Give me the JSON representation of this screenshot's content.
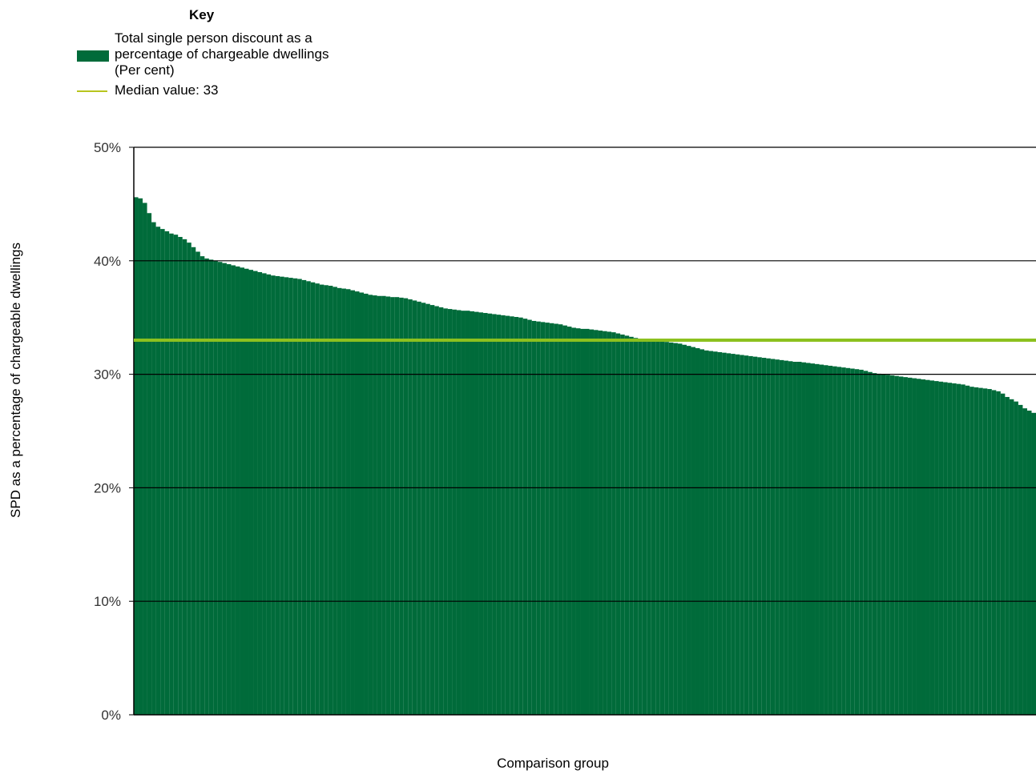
{
  "legend": {
    "title": "Key",
    "series_label": "Total single person discount as a percentage of chargeable dwellings (Per cent)",
    "median_label": "Median value: 33"
  },
  "colors": {
    "bar": "#006b3a",
    "median_line": "#8cc11f",
    "highlight_line": "#e6e621",
    "gridline": "#000000"
  },
  "chart_data": {
    "type": "bar",
    "title": "",
    "xlabel": "Comparison group",
    "ylabel": "SPD as a percentage of chargeable dwellings",
    "ylim": [
      0,
      50
    ],
    "yticks": [
      "0%",
      "10%",
      "20%",
      "30%",
      "40%",
      "50%"
    ],
    "yticks_values": [
      0,
      10,
      20,
      30,
      40,
      50
    ],
    "grid": true,
    "legend_position": "top-left",
    "median": 33,
    "highlight_index": 242,
    "series": [
      {
        "name": "Total single person discount as a percentage of chargeable dwellings (Per cent)",
        "values": [
          45.6,
          45.5,
          45.1,
          44.2,
          43.4,
          43.0,
          42.8,
          42.6,
          42.4,
          42.3,
          42.1,
          41.9,
          41.6,
          41.2,
          40.8,
          40.4,
          40.2,
          40.1,
          40.0,
          39.9,
          39.8,
          39.7,
          39.6,
          39.5,
          39.4,
          39.3,
          39.2,
          39.1,
          39.0,
          38.9,
          38.8,
          38.7,
          38.65,
          38.6,
          38.55,
          38.5,
          38.45,
          38.4,
          38.3,
          38.2,
          38.1,
          38.0,
          37.9,
          37.85,
          37.8,
          37.7,
          37.6,
          37.55,
          37.5,
          37.4,
          37.3,
          37.2,
          37.1,
          37.0,
          36.95,
          36.9,
          36.9,
          36.85,
          36.8,
          36.8,
          36.75,
          36.7,
          36.6,
          36.5,
          36.4,
          36.3,
          36.2,
          36.1,
          36.0,
          35.9,
          35.8,
          35.75,
          35.7,
          35.65,
          35.6,
          35.6,
          35.55,
          35.5,
          35.45,
          35.4,
          35.35,
          35.3,
          35.25,
          35.2,
          35.15,
          35.1,
          35.05,
          35.0,
          34.9,
          34.8,
          34.7,
          34.65,
          34.6,
          34.55,
          34.5,
          34.45,
          34.4,
          34.3,
          34.2,
          34.1,
          34.05,
          34.0,
          34.0,
          33.95,
          33.9,
          33.85,
          33.8,
          33.75,
          33.7,
          33.6,
          33.5,
          33.4,
          33.3,
          33.2,
          33.1,
          33.05,
          33.0,
          33.0,
          32.95,
          32.9,
          32.85,
          32.8,
          32.75,
          32.7,
          32.6,
          32.5,
          32.4,
          32.3,
          32.2,
          32.1,
          32.05,
          32.0,
          31.95,
          31.9,
          31.85,
          31.8,
          31.75,
          31.7,
          31.65,
          31.6,
          31.55,
          31.5,
          31.45,
          31.4,
          31.35,
          31.3,
          31.25,
          31.2,
          31.15,
          31.1,
          31.1,
          31.05,
          31.0,
          30.95,
          30.9,
          30.85,
          30.8,
          30.75,
          30.7,
          30.65,
          30.6,
          30.55,
          30.5,
          30.45,
          30.4,
          30.3,
          30.2,
          30.1,
          30.05,
          30.0,
          29.95,
          29.9,
          29.85,
          29.8,
          29.75,
          29.7,
          29.65,
          29.6,
          29.55,
          29.5,
          29.45,
          29.4,
          29.35,
          29.3,
          29.25,
          29.2,
          29.15,
          29.1,
          29.0,
          28.9,
          28.85,
          28.8,
          28.75,
          28.7,
          28.6,
          28.5,
          28.3,
          28.0,
          27.8,
          27.6,
          27.3,
          27.0,
          26.8,
          26.6
        ]
      }
    ]
  }
}
